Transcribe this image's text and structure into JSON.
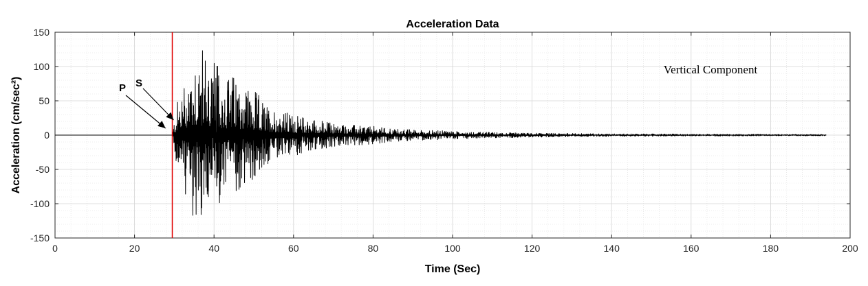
{
  "chart_data": {
    "type": "line",
    "title": "Acceleration Data",
    "xlabel": "Time (Sec)",
    "ylabel": "Acceleration (cm/sec²)",
    "xlim": [
      0,
      200
    ],
    "ylim": [
      -150,
      150
    ],
    "xticks": [
      0,
      20,
      40,
      60,
      80,
      100,
      120,
      140,
      160,
      180,
      200
    ],
    "yticks": [
      -150,
      -100,
      -50,
      0,
      50,
      100,
      150
    ],
    "grid": true,
    "minor_grid": true,
    "record_end_time": 194,
    "envelope": [
      [
        0,
        0
      ],
      [
        29.5,
        0
      ],
      [
        30.5,
        45
      ],
      [
        32,
        70
      ],
      [
        34,
        110
      ],
      [
        35,
        130
      ],
      [
        36,
        132
      ],
      [
        38,
        125
      ],
      [
        40,
        110
      ],
      [
        42,
        95
      ],
      [
        45,
        88
      ],
      [
        48,
        80
      ],
      [
        50,
        70
      ],
      [
        53,
        45
      ],
      [
        56,
        38
      ],
      [
        60,
        30
      ],
      [
        65,
        24
      ],
      [
        70,
        18
      ],
      [
        75,
        15
      ],
      [
        80,
        13
      ],
      [
        85,
        10
      ],
      [
        90,
        8
      ],
      [
        95,
        7
      ],
      [
        100,
        6
      ],
      [
        105,
        5
      ],
      [
        110,
        4
      ],
      [
        120,
        3
      ],
      [
        130,
        2.5
      ],
      [
        140,
        2
      ],
      [
        160,
        1.5
      ],
      [
        180,
        1.2
      ],
      [
        194,
        1
      ]
    ],
    "series": [
      {
        "name": "",
        "color": "#000000",
        "note": "dense oscillatory acceleration trace"
      }
    ],
    "markers": [
      {
        "type": "vline",
        "x": 29.5,
        "color": "#e00000"
      }
    ],
    "annotations": [
      {
        "label": "P",
        "target": [
          27.8,
          0
        ]
      },
      {
        "label": "S",
        "target": [
          29.5,
          22
        ]
      },
      {
        "label": "Vertical Component"
      }
    ]
  }
}
